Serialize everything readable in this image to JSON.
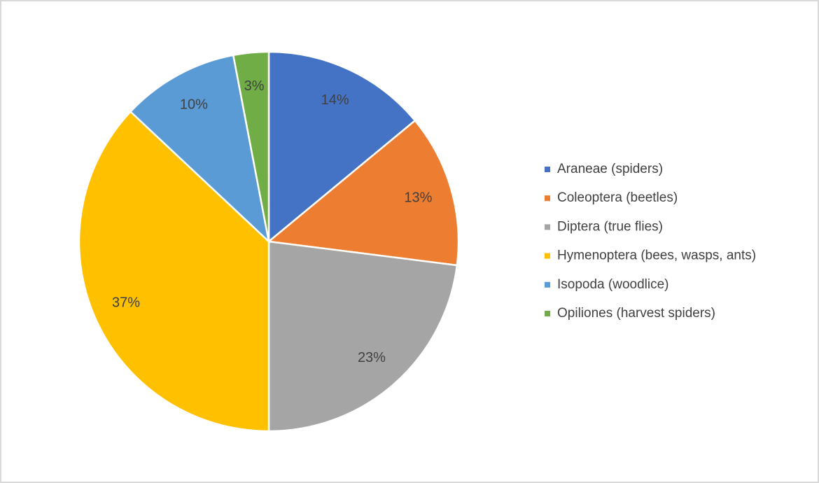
{
  "chart_data": {
    "type": "pie",
    "categories": [
      "Araneae (spiders)",
      "Coleoptera (beetles)",
      "Diptera (true flies)",
      "Hymenoptera (bees, wasps, ants)",
      "Isopoda (woodlice)",
      "Opiliones (harvest spiders)"
    ],
    "values": [
      14,
      13,
      23,
      37,
      10,
      3
    ],
    "value_labels": [
      "14%",
      "13%",
      "23%",
      "37%",
      "10%",
      "3%"
    ],
    "colors": [
      "#4472c4",
      "#ed7d31",
      "#a5a5a5",
      "#ffc000",
      "#5b9bd5",
      "#70ad47"
    ],
    "legend": "right"
  }
}
